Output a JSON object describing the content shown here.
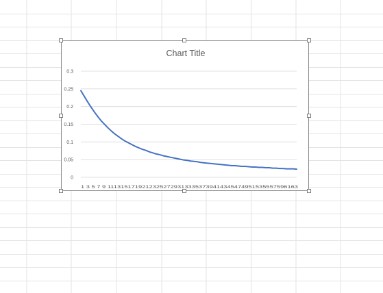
{
  "chart_data": {
    "type": "line",
    "title": "Chart Title",
    "xlabel": "",
    "ylabel": "",
    "x_tick_labels": "1 3 5 7 9 111315171921232527293133353739414345474951535557596163",
    "yticks": [
      "0",
      "0.05",
      "0.1",
      "0.15",
      "0.2",
      "0.25",
      "0.3"
    ],
    "ylim": [
      0,
      0.3
    ],
    "x": [
      1,
      2,
      3,
      4,
      5,
      6,
      7,
      8,
      9,
      10,
      11,
      12,
      13,
      14,
      15,
      16,
      17,
      18,
      19,
      20,
      21,
      22,
      23,
      24,
      25,
      26,
      27,
      28,
      29,
      30,
      31,
      32,
      33,
      34,
      35,
      36,
      37,
      38,
      39,
      40,
      41,
      42,
      43,
      44,
      45,
      46,
      47,
      48,
      49,
      50,
      51,
      52,
      53,
      54,
      55,
      56,
      57,
      58,
      59,
      60,
      61,
      62,
      63,
      64
    ],
    "series": [
      {
        "color": "#4472c4",
        "values": [
          0.245,
          0.229,
          0.213,
          0.198,
          0.184,
          0.171,
          0.159,
          0.149,
          0.139,
          0.13,
          0.122,
          0.115,
          0.108,
          0.102,
          0.097,
          0.092,
          0.087,
          0.083,
          0.079,
          0.076,
          0.072,
          0.069,
          0.066,
          0.064,
          0.061,
          0.059,
          0.057,
          0.055,
          0.053,
          0.051,
          0.049,
          0.048,
          0.046,
          0.045,
          0.044,
          0.042,
          0.041,
          0.04,
          0.039,
          0.038,
          0.037,
          0.036,
          0.035,
          0.034,
          0.033,
          0.033,
          0.032,
          0.031,
          0.031,
          0.03,
          0.029,
          0.029,
          0.028,
          0.028,
          0.027,
          0.027,
          0.026,
          0.026,
          0.025,
          0.025,
          0.024,
          0.024,
          0.024,
          0.023
        ]
      }
    ],
    "grid": true,
    "legend": "none"
  },
  "colors": {
    "gridline": "#d9d9d9",
    "sheet_grid": "#e3e3e3",
    "axis_text": "#595959",
    "title_text": "#595959",
    "frame": "#8a8a8a"
  }
}
